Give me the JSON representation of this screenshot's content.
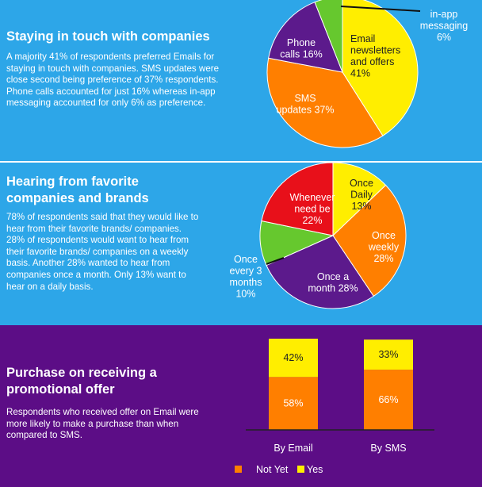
{
  "sections": {
    "staying_in_touch": {
      "heading": "Staying in touch with companies",
      "body": "A majority  41% of respondents preferred Emails for staying in touch with companies. SMS updates were close second being preference of 37% respondents. Phone calls accounted for just 16% whereas in-app messaging accounted for only 6% as preference."
    },
    "hearing_from": {
      "heading": "Hearing from favorite companies and brands",
      "body": "78% of respondents said that they would like to hear from their favorite brands/ companies. 28% of respondents would want to hear from their favorite brands/ companies on a weekly basis. Another 28% wanted to hear from companies once a month. Only  13% want to hear on a daily basis."
    },
    "purchase": {
      "heading": "Purchase on receiving a promotional offer",
      "body": "Respondents who received offer on Email were more likely to make a purchase than when compared to SMS."
    }
  },
  "colors": {
    "panel_blue": "#2da6e8",
    "panel_purple": "#5c0d86",
    "yellow": "#ffee00",
    "orange": "#ff7f00",
    "purple_slice": "#5c1a8c",
    "green": "#66c82e",
    "red": "#e8101a"
  },
  "chart_data": [
    {
      "type": "pie",
      "title": "",
      "slices": [
        {
          "label": "Email newsletters and offers",
          "value": 41,
          "display": [
            "Email",
            "newsletters",
            "and offers",
            "41%"
          ],
          "color": "#ffee00",
          "text_color": "#222222"
        },
        {
          "label": "SMS updates",
          "value": 37,
          "display": [
            "SMS",
            "updates 37%"
          ],
          "color": "#ff7f00",
          "text_color": "#ffffff"
        },
        {
          "label": "Phone calls",
          "value": 16,
          "display": [
            "Phone",
            "calls 16%"
          ],
          "color": "#5c1a8c",
          "text_color": "#ffffff"
        },
        {
          "label": "in-app messaging",
          "value": 6,
          "display": [
            "in-app",
            "messaging",
            "6%"
          ],
          "color": "#66c82e",
          "text_color": "#ffffff"
        }
      ]
    },
    {
      "type": "pie",
      "title": "",
      "slices": [
        {
          "label": "Once Daily",
          "value": 13,
          "display": [
            "Once",
            "Daily",
            "13%"
          ],
          "color": "#ffee00",
          "text_color": "#222222"
        },
        {
          "label": "Once weekly",
          "value": 28,
          "display": [
            "Once",
            "weekly",
            "28%"
          ],
          "color": "#ff7f00",
          "text_color": "#ffffff"
        },
        {
          "label": "Once a month",
          "value": 28,
          "display": [
            "Once a",
            "month 28%"
          ],
          "color": "#5c1a8c",
          "text_color": "#ffffff"
        },
        {
          "label": "Once every 3 months",
          "value": 10,
          "display": [
            "Once",
            "every 3",
            "months",
            "10%"
          ],
          "color": "#66c82e",
          "text_color": "#ffffff"
        },
        {
          "label": "Whenever need be",
          "value": 22,
          "display": [
            "Whenever",
            "need be",
            "22%"
          ],
          "color": "#e8101a",
          "text_color": "#ffffff"
        }
      ]
    },
    {
      "type": "bar",
      "stacked": true,
      "categories": [
        "By Email",
        "By SMS"
      ],
      "series": [
        {
          "name": "Not Yet",
          "values": [
            58,
            66
          ],
          "color": "#ff7f00"
        },
        {
          "name": "Yes",
          "values": [
            42,
            33
          ],
          "color": "#ffee00"
        }
      ],
      "ylim": [
        0,
        100
      ],
      "legend": "bottom"
    }
  ]
}
